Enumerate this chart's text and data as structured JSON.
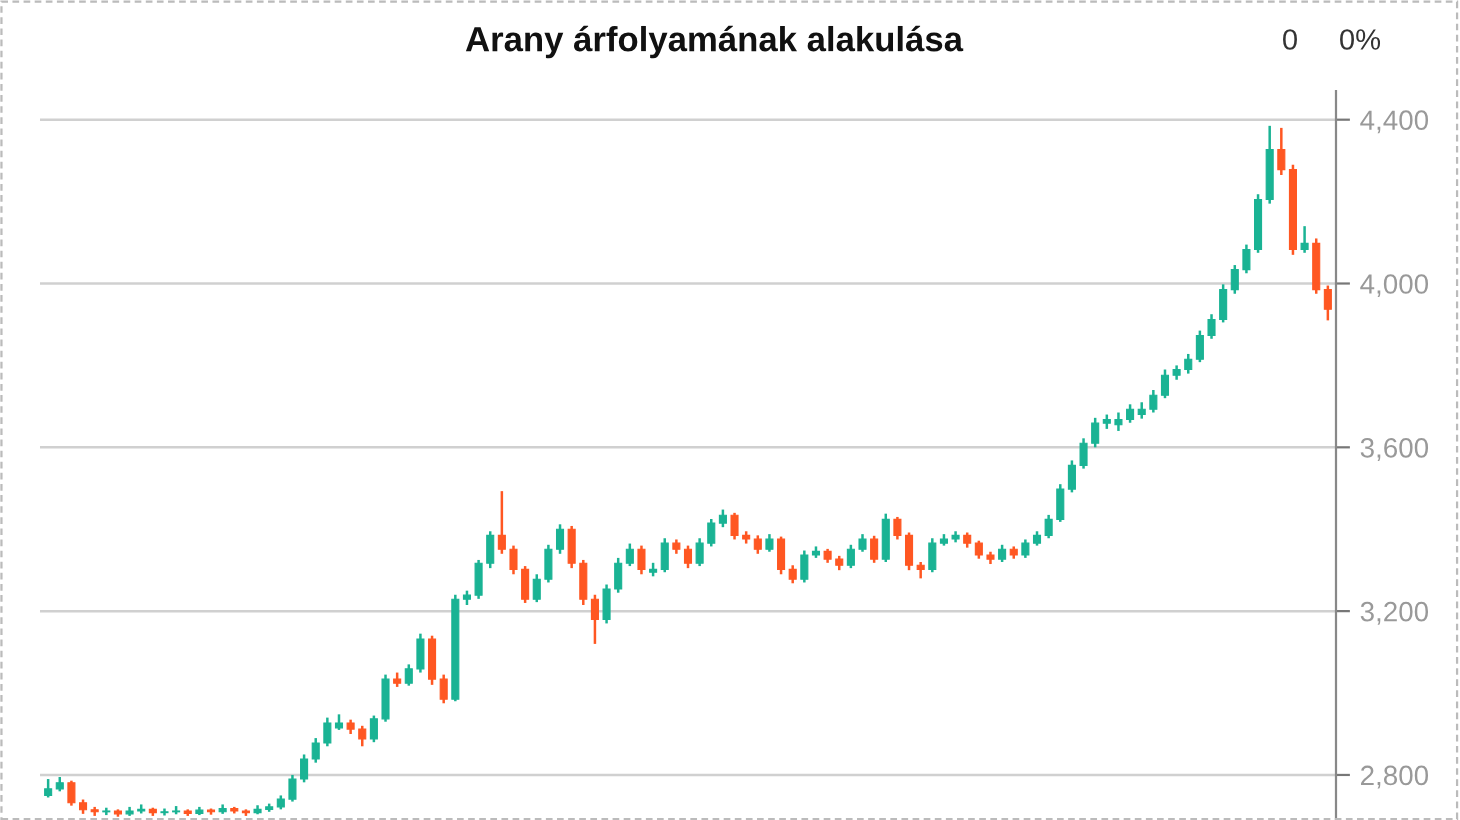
{
  "chart_data": {
    "type": "candlestick",
    "title": "Arany árfolyamának alakulása",
    "annotations": [
      "0",
      "0%"
    ],
    "categories": [
      null,
      null,
      null,
      null,
      null,
      null,
      null,
      null,
      null,
      null,
      null,
      null,
      null,
      null,
      null,
      null,
      null,
      null,
      null,
      null,
      null,
      null,
      null,
      null,
      null,
      null,
      null,
      null,
      null,
      null,
      null,
      null,
      null,
      null,
      null,
      null,
      null,
      null,
      null,
      null,
      null,
      null,
      null,
      null,
      null,
      null,
      null,
      null,
      null,
      null,
      null,
      null,
      null,
      null,
      null,
      null,
      null,
      null,
      null,
      null,
      null,
      null,
      null,
      null,
      null,
      null,
      null,
      null,
      null,
      null,
      null,
      null,
      null,
      null,
      null,
      null,
      null,
      null,
      null,
      null,
      null,
      null,
      null,
      null,
      null,
      null,
      null,
      null,
      null,
      null,
      null,
      null,
      null,
      null,
      null,
      null,
      null,
      null,
      null,
      null,
      null,
      null,
      null,
      null,
      null,
      null,
      null,
      null,
      null,
      null,
      null
    ],
    "ohlc": [
      [
        2750,
        2790,
        2745,
        2766
      ],
      [
        2766,
        2795,
        2760,
        2781
      ],
      [
        2781,
        2786,
        2725,
        2732
      ],
      [
        2732,
        2740,
        2705,
        2715
      ],
      [
        2715,
        2722,
        2700,
        2710
      ],
      [
        2710,
        2720,
        2702,
        2712
      ],
      [
        2712,
        2716,
        2698,
        2705
      ],
      [
        2705,
        2722,
        2700,
        2712
      ],
      [
        2712,
        2728,
        2706,
        2716
      ],
      [
        2716,
        2720,
        2700,
        2708
      ],
      [
        2708,
        2718,
        2701,
        2710
      ],
      [
        2710,
        2724,
        2704,
        2712
      ],
      [
        2712,
        2716,
        2700,
        2706
      ],
      [
        2706,
        2722,
        2702,
        2714
      ],
      [
        2714,
        2718,
        2703,
        2710
      ],
      [
        2710,
        2728,
        2705,
        2718
      ],
      [
        2718,
        2722,
        2706,
        2712
      ],
      [
        2712,
        2716,
        2700,
        2708
      ],
      [
        2708,
        2726,
        2704,
        2716
      ],
      [
        2716,
        2730,
        2710,
        2722
      ],
      [
        2722,
        2750,
        2716,
        2741
      ],
      [
        2741,
        2800,
        2735,
        2790
      ],
      [
        2790,
        2850,
        2782,
        2839
      ],
      [
        2839,
        2890,
        2830,
        2878
      ],
      [
        2878,
        2940,
        2870,
        2927
      ],
      [
        2915,
        2948,
        2910,
        2927
      ],
      [
        2927,
        2935,
        2900,
        2912
      ],
      [
        2912,
        2920,
        2870,
        2888
      ],
      [
        2888,
        2945,
        2880,
        2937
      ],
      [
        2937,
        3045,
        2930,
        3034
      ],
      [
        3034,
        3050,
        3015,
        3024
      ],
      [
        3024,
        3070,
        3018,
        3059
      ],
      [
        3059,
        3145,
        3050,
        3132
      ],
      [
        3132,
        3140,
        3020,
        3034
      ],
      [
        3034,
        3045,
        2975,
        2985
      ],
      [
        2985,
        3240,
        2980,
        3229
      ],
      [
        3229,
        3250,
        3215,
        3239
      ],
      [
        3239,
        3325,
        3230,
        3317
      ],
      [
        3317,
        3395,
        3305,
        3385
      ],
      [
        3385,
        3493,
        3340,
        3351
      ],
      [
        3351,
        3360,
        3290,
        3302
      ],
      [
        3302,
        3310,
        3220,
        3229
      ],
      [
        3229,
        3290,
        3222,
        3278
      ],
      [
        3278,
        3362,
        3270,
        3351
      ],
      [
        3351,
        3412,
        3340,
        3400
      ],
      [
        3400,
        3408,
        3305,
        3317
      ],
      [
        3317,
        3325,
        3215,
        3229
      ],
      [
        3229,
        3240,
        3120,
        3180
      ],
      [
        3180,
        3265,
        3170,
        3254
      ],
      [
        3254,
        3330,
        3245,
        3317
      ],
      [
        3317,
        3365,
        3310,
        3351
      ],
      [
        3351,
        3360,
        3290,
        3302
      ],
      [
        3295,
        3318,
        3285,
        3302
      ],
      [
        3302,
        3378,
        3295,
        3366
      ],
      [
        3366,
        3375,
        3340,
        3351
      ],
      [
        3351,
        3360,
        3305,
        3317
      ],
      [
        3317,
        3378,
        3310,
        3366
      ],
      [
        3366,
        3425,
        3358,
        3415
      ],
      [
        3415,
        3448,
        3405,
        3434
      ],
      [
        3434,
        3440,
        3375,
        3385
      ],
      [
        3385,
        3395,
        3365,
        3376
      ],
      [
        3376,
        3385,
        3340,
        3351
      ],
      [
        3351,
        3388,
        3345,
        3376
      ],
      [
        3376,
        3382,
        3290,
        3302
      ],
      [
        3302,
        3312,
        3268,
        3278
      ],
      [
        3278,
        3348,
        3270,
        3337
      ],
      [
        3337,
        3358,
        3330,
        3346
      ],
      [
        3346,
        3352,
        3318,
        3327
      ],
      [
        3327,
        3335,
        3300,
        3312
      ],
      [
        3312,
        3362,
        3305,
        3351
      ],
      [
        3351,
        3388,
        3345,
        3376
      ],
      [
        3376,
        3384,
        3318,
        3327
      ],
      [
        3327,
        3438,
        3320,
        3424
      ],
      [
        3424,
        3430,
        3375,
        3385
      ],
      [
        3385,
        3392,
        3300,
        3312
      ],
      [
        3312,
        3320,
        3280,
        3302
      ],
      [
        3302,
        3378,
        3295,
        3366
      ],
      [
        3366,
        3388,
        3360,
        3376
      ],
      [
        3376,
        3395,
        3368,
        3385
      ],
      [
        3385,
        3392,
        3355,
        3366
      ],
      [
        3366,
        3372,
        3328,
        3337
      ],
      [
        3337,
        3345,
        3315,
        3327
      ],
      [
        3327,
        3362,
        3320,
        3351
      ],
      [
        3351,
        3358,
        3328,
        3337
      ],
      [
        3337,
        3375,
        3330,
        3366
      ],
      [
        3366,
        3395,
        3360,
        3385
      ],
      [
        3385,
        3435,
        3378,
        3424
      ],
      [
        3424,
        3510,
        3418,
        3498
      ],
      [
        3498,
        3568,
        3490,
        3556
      ],
      [
        3556,
        3622,
        3548,
        3610
      ],
      [
        3610,
        3672,
        3600,
        3659
      ],
      [
        3659,
        3680,
        3645,
        3668
      ],
      [
        3655,
        3685,
        3640,
        3668
      ],
      [
        3668,
        3705,
        3660,
        3693
      ],
      [
        3680,
        3710,
        3670,
        3693
      ],
      [
        3693,
        3740,
        3685,
        3727
      ],
      [
        3727,
        3790,
        3720,
        3776
      ],
      [
        3776,
        3800,
        3765,
        3790
      ],
      [
        3790,
        3828,
        3780,
        3815
      ],
      [
        3815,
        3885,
        3808,
        3873
      ],
      [
        3873,
        3925,
        3865,
        3912
      ],
      [
        3912,
        3998,
        3905,
        3985
      ],
      [
        3985,
        4045,
        3975,
        4034
      ],
      [
        4034,
        4095,
        4025,
        4083
      ],
      [
        4083,
        4218,
        4075,
        4205
      ],
      [
        4205,
        4385,
        4195,
        4327
      ],
      [
        4327,
        4380,
        4265,
        4278
      ],
      [
        4278,
        4290,
        4070,
        4083
      ],
      [
        4083,
        4140,
        4075,
        4098
      ],
      [
        4098,
        4110,
        3975,
        3985
      ],
      [
        3985,
        3995,
        3910,
        3937
      ]
    ],
    "colors": [
      "#1ab394",
      "#1ab394",
      "#ff5722",
      "#ff5722",
      "#ff5722",
      "#1ab394",
      "#ff5722",
      "#1ab394",
      "#1ab394",
      "#ff5722",
      "#1ab394",
      "#1ab394",
      "#ff5722",
      "#1ab394",
      "#ff5722",
      "#1ab394",
      "#ff5722",
      "#ff5722",
      "#1ab394",
      "#1ab394",
      "#1ab394",
      "#1ab394",
      "#1ab394",
      "#1ab394",
      "#1ab394",
      "#1ab394",
      "#ff5722",
      "#ff5722",
      "#1ab394",
      "#1ab394",
      "#ff5722",
      "#1ab394",
      "#1ab394",
      "#ff5722",
      "#ff5722",
      "#1ab394",
      "#1ab394",
      "#1ab394",
      "#1ab394",
      "#ff5722",
      "#ff5722",
      "#ff5722",
      "#1ab394",
      "#1ab394",
      "#1ab394",
      "#ff5722",
      "#ff5722",
      "#ff5722",
      "#1ab394",
      "#1ab394",
      "#1ab394",
      "#ff5722",
      "#1ab394",
      "#1ab394",
      "#ff5722",
      "#ff5722",
      "#1ab394",
      "#1ab394",
      "#1ab394",
      "#ff5722",
      "#ff5722",
      "#ff5722",
      "#1ab394",
      "#ff5722",
      "#ff5722",
      "#1ab394",
      "#1ab394",
      "#ff5722",
      "#ff5722",
      "#1ab394",
      "#1ab394",
      "#ff5722",
      "#1ab394",
      "#ff5722",
      "#ff5722",
      "#ff5722",
      "#1ab394",
      "#1ab394",
      "#1ab394",
      "#ff5722",
      "#ff5722",
      "#ff5722",
      "#1ab394",
      "#ff5722",
      "#1ab394",
      "#1ab394",
      "#1ab394",
      "#1ab394",
      "#1ab394",
      "#1ab394",
      "#1ab394",
      "#1ab394",
      "#1ab394",
      "#1ab394",
      "#1ab394",
      "#1ab394",
      "#1ab394",
      "#1ab394",
      "#1ab394",
      "#1ab394",
      "#1ab394",
      "#1ab394",
      "#1ab394",
      "#1ab394",
      "#1ab394",
      "#1ab394",
      "#ff5722",
      "#ff5722",
      "#1ab394",
      "#ff5722",
      "#ff5722"
    ],
    "ylim": [
      2690,
      4470
    ],
    "yticks": [
      {
        "value": 2800,
        "label": "2,800"
      },
      {
        "value": 3200,
        "label": "3,200"
      },
      {
        "value": 3600,
        "label": "3,600"
      },
      {
        "value": 4000,
        "label": "4,000"
      },
      {
        "value": 4400,
        "label": "4,400"
      }
    ],
    "grid": "y",
    "tick_labels": "y"
  }
}
